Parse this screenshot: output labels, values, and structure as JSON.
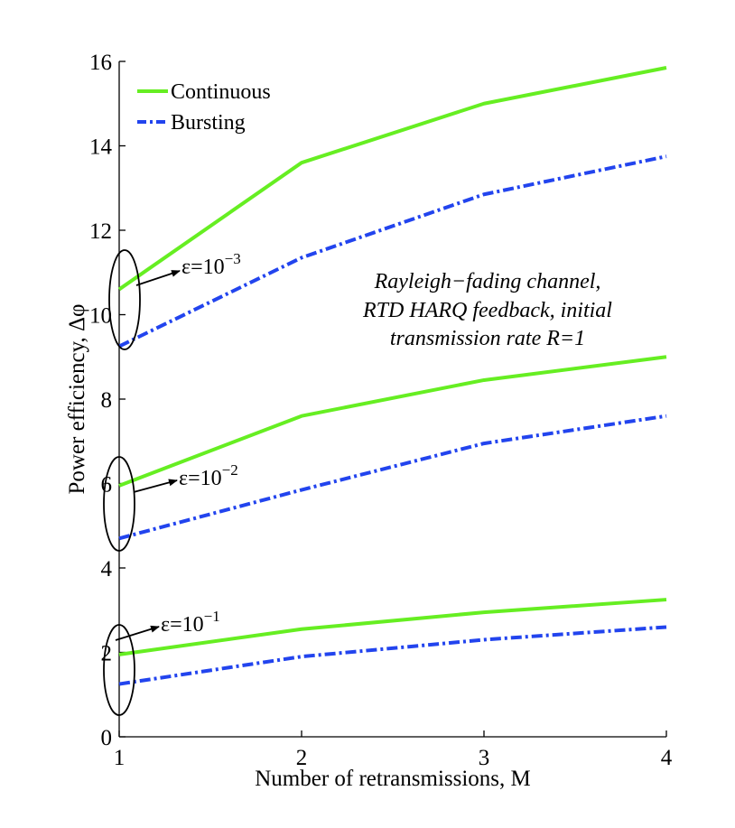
{
  "chart_data": {
    "type": "line",
    "xlabel": "Number of retransmissions, M",
    "ylabel": "Power efficiency, Δφ",
    "x": [
      1,
      2,
      3,
      4
    ],
    "xlim": [
      1,
      4
    ],
    "ylim": [
      0,
      16
    ],
    "xticks": [
      "1",
      "2",
      "3",
      "4"
    ],
    "yticks": [
      "0",
      "2",
      "4",
      "6",
      "8",
      "10",
      "12",
      "14",
      "16"
    ],
    "grid": false,
    "legend": {
      "placement": "top-left",
      "entries": [
        {
          "name": "Continuous",
          "color": "#66ee22",
          "style": "solid"
        },
        {
          "name": "Bursting",
          "color": "#2244ee",
          "style": "dash-dot"
        }
      ]
    },
    "series": [
      {
        "name": "Continuous",
        "group": "eps-3",
        "values": [
          10.6,
          13.6,
          15.0,
          15.85
        ]
      },
      {
        "name": "Bursting",
        "group": "eps-3",
        "values": [
          9.25,
          11.35,
          12.85,
          13.75
        ]
      },
      {
        "name": "Continuous",
        "group": "eps-2",
        "values": [
          5.95,
          7.6,
          8.45,
          9.0
        ]
      },
      {
        "name": "Bursting",
        "group": "eps-2",
        "values": [
          4.7,
          5.85,
          6.95,
          7.6
        ]
      },
      {
        "name": "Continuous",
        "group": "eps-1",
        "values": [
          1.95,
          2.55,
          2.95,
          3.25
        ]
      },
      {
        "name": "Bursting",
        "group": "eps-1",
        "values": [
          1.25,
          1.9,
          2.3,
          2.6
        ]
      }
    ],
    "annotations": {
      "channel_note": [
        "Rayleigh−fading channel,",
        "RTD HARQ feedback, initial",
        "transmission rate R=1"
      ],
      "eps_labels": [
        {
          "base": "ε=10",
          "exp": "−3"
        },
        {
          "base": "ε=10",
          "exp": "−2"
        },
        {
          "base": "ε=10",
          "exp": "−1"
        }
      ]
    }
  }
}
